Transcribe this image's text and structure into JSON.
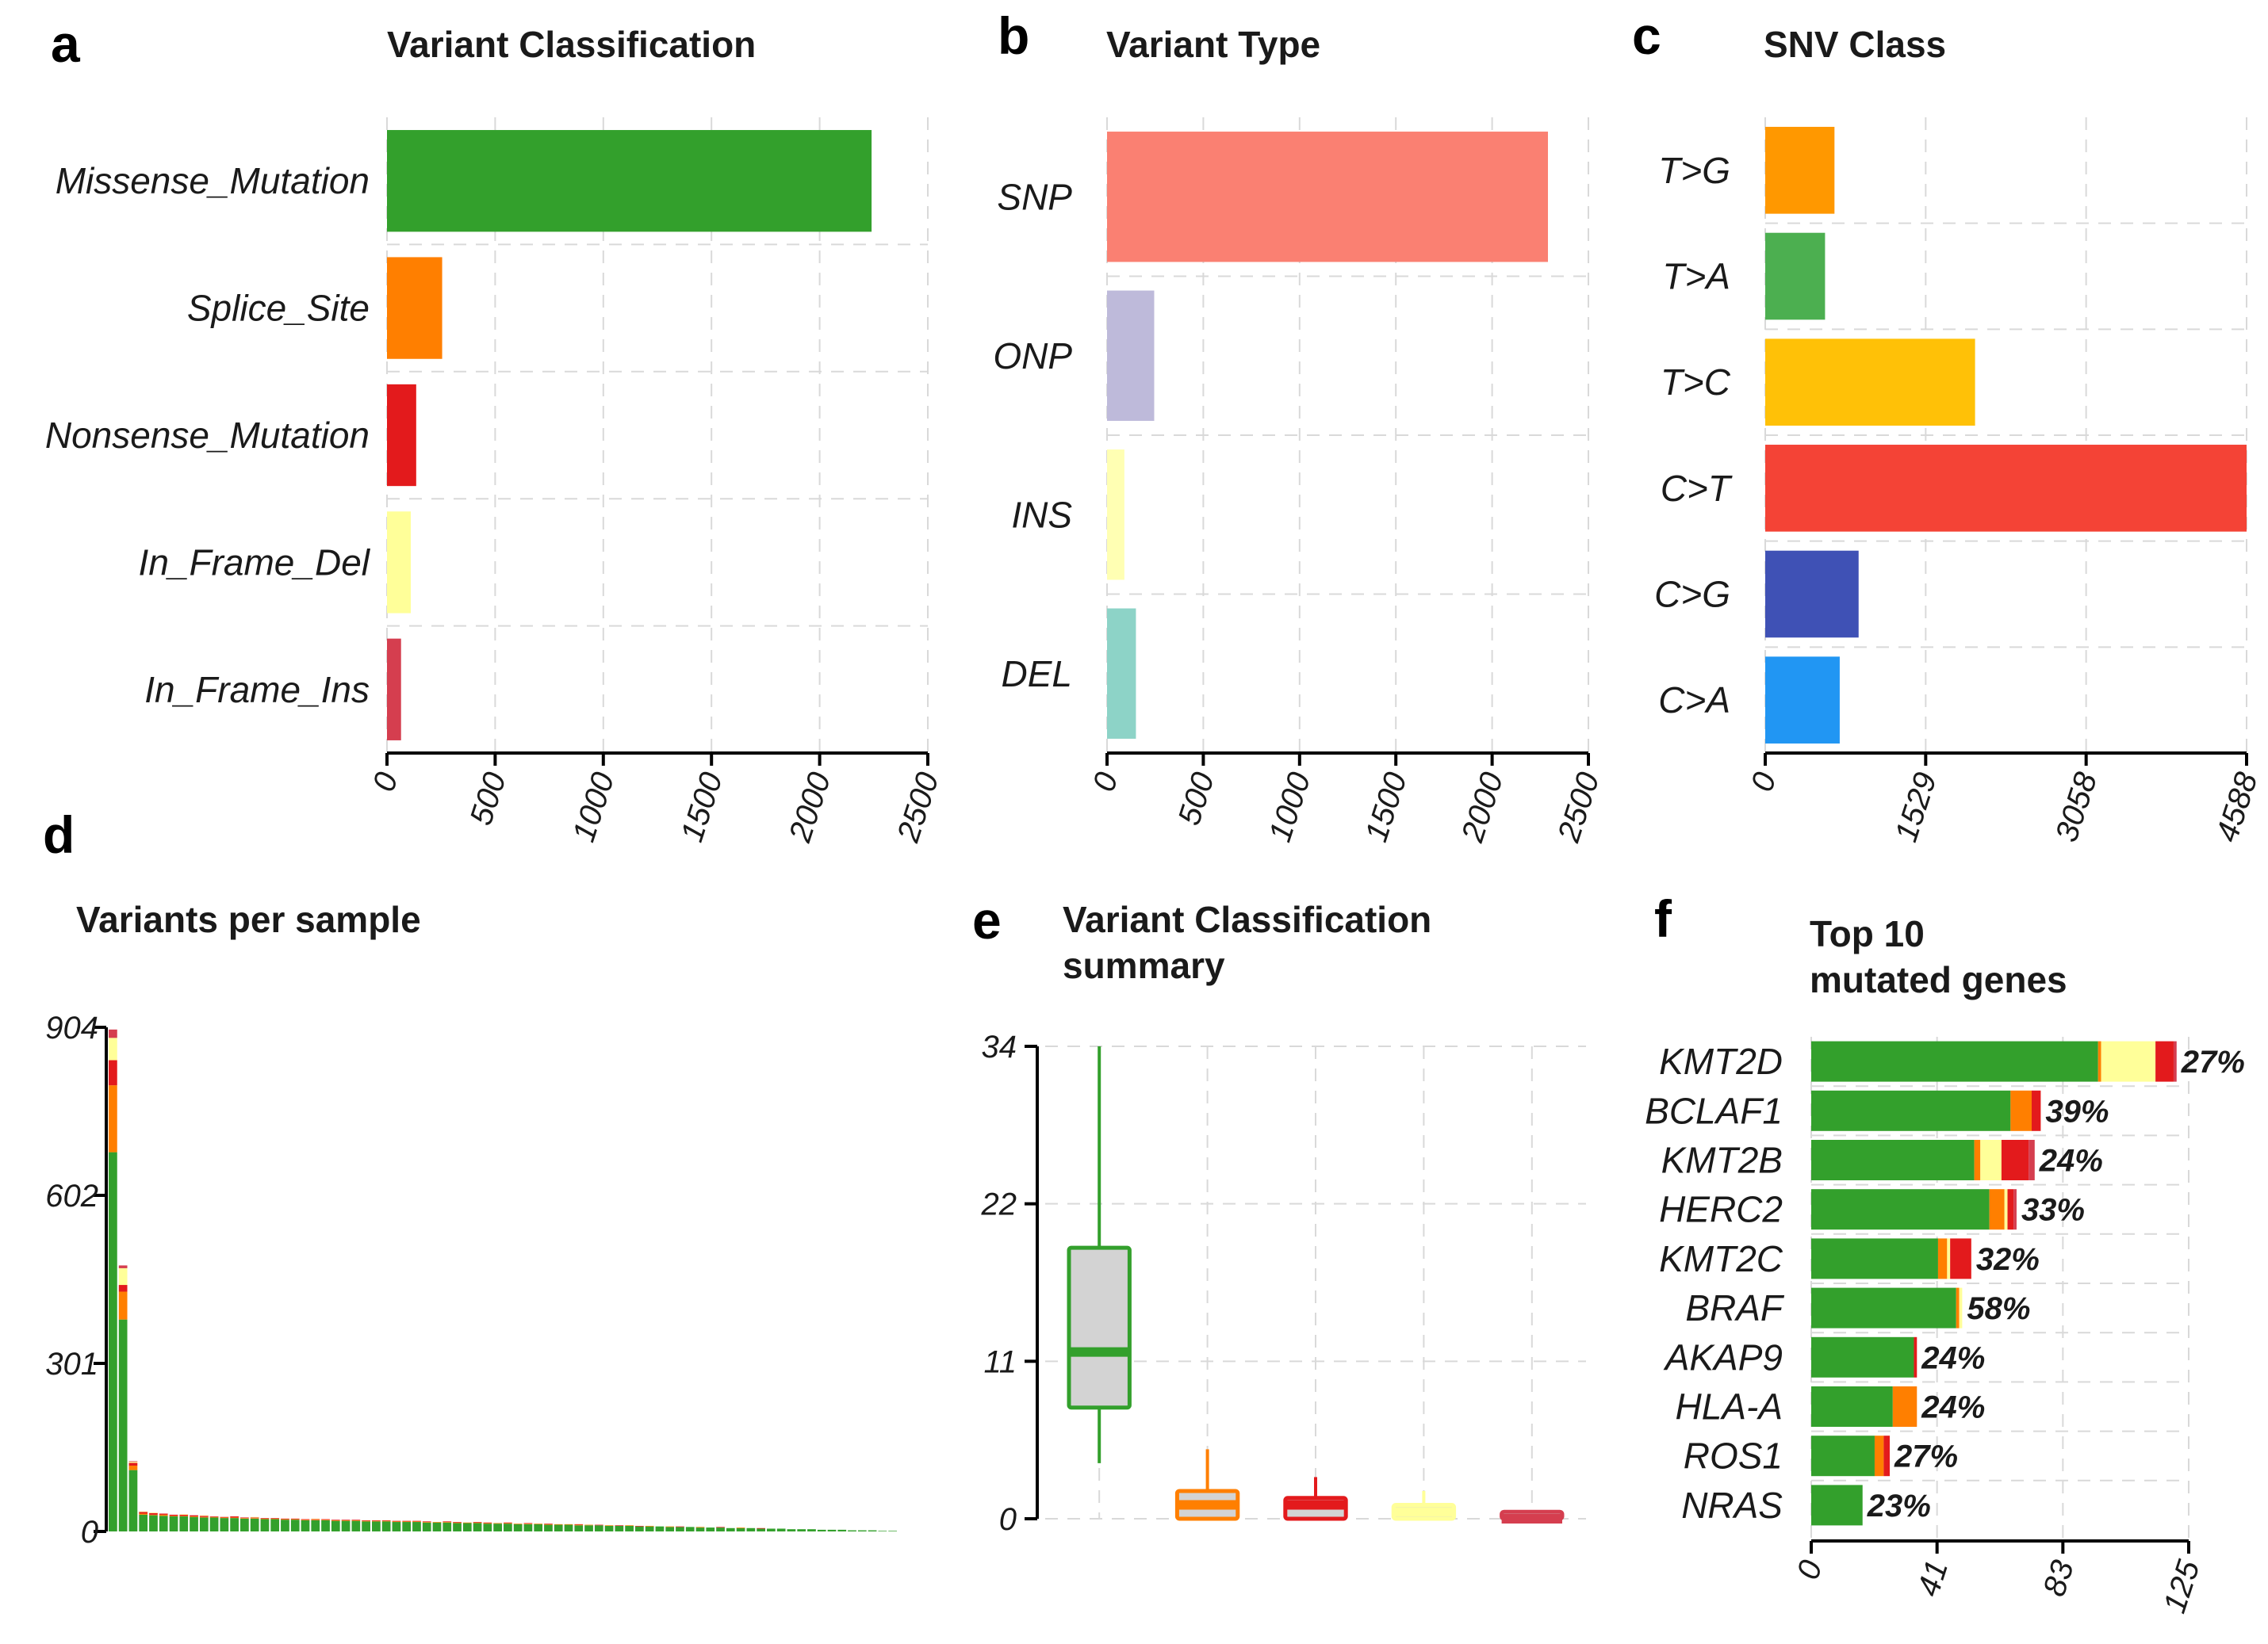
{
  "colors": {
    "Missense_Mutation": "#33A02C",
    "Splice_Site": "#FF7F00",
    "Nonsense_Mutation": "#E31A1C",
    "In_Frame_Del": "#FFFF99",
    "In_Frame_Ins": "#D53E4F",
    "Frame_Shift_Ins": "#FDBF6F"
  },
  "chart_data": [
    {
      "id": "a",
      "panel_label": "a",
      "type": "bar",
      "orientation": "horizontal",
      "title": "Variant Classification",
      "categories": [
        "Missense_Mutation",
        "Splice_Site",
        "Nonsense_Mutation",
        "In_Frame_Del",
        "In_Frame_Ins"
      ],
      "values": [
        2240,
        255,
        135,
        110,
        65
      ],
      "colors": [
        "#33A02C",
        "#FF7F00",
        "#E31A1C",
        "#FFFF99",
        "#D53E4F"
      ],
      "xlim": [
        0,
        2500
      ],
      "xticks": [
        "0",
        "500",
        "1000",
        "1500",
        "2000",
        "2500"
      ]
    },
    {
      "id": "b",
      "panel_label": "b",
      "type": "bar",
      "orientation": "horizontal",
      "title": "Variant Type",
      "categories": [
        "SNP",
        "ONP",
        "INS",
        "DEL"
      ],
      "values": [
        2290,
        245,
        90,
        150
      ],
      "colors": [
        "#FA8072",
        "#BEBADA",
        "#FFFFB3",
        "#8DD3C7"
      ],
      "xlim": [
        0,
        2500
      ],
      "xticks": [
        "0",
        "500",
        "1000",
        "1500",
        "2000",
        "2500"
      ]
    },
    {
      "id": "c",
      "panel_label": "c",
      "type": "bar",
      "orientation": "horizontal",
      "title": "SNV Class",
      "categories": [
        "T>G",
        "T>A",
        "T>C",
        "C>T",
        "C>G",
        "C>A"
      ],
      "values": [
        660,
        570,
        2000,
        4588,
        890,
        710
      ],
      "colors": [
        "#FF9800",
        "#4CAF50",
        "#FFC107",
        "#F44336",
        "#3F51B5",
        "#2196F3"
      ],
      "xlim": [
        0,
        4588
      ],
      "xticks": [
        "0",
        "1529",
        "3058",
        "4588"
      ]
    },
    {
      "id": "d",
      "panel_label": "d",
      "type": "bar",
      "orientation": "vertical",
      "stacked": true,
      "title": "Variants per sample",
      "ylim": [
        0,
        904
      ],
      "yticks": [
        "0",
        "301",
        "602",
        "904"
      ],
      "series_order": [
        "Missense_Mutation",
        "Splice_Site",
        "Nonsense_Mutation",
        "In_Frame_Del",
        "In_Frame_Ins"
      ],
      "samples": [
        [
          680,
          120,
          45,
          40,
          15
        ],
        [
          380,
          50,
          12,
          30,
          5
        ],
        [
          110,
          8,
          5,
          2,
          1
        ],
        [
          30,
          2,
          3,
          1,
          0
        ],
        [
          29,
          1,
          3,
          1,
          0
        ],
        [
          28,
          2,
          2,
          0,
          0
        ],
        [
          27,
          1,
          2,
          0,
          0
        ],
        [
          27,
          1,
          2,
          1,
          0
        ],
        [
          26,
          1,
          2,
          0,
          0
        ],
        [
          25,
          1,
          2,
          1,
          0
        ],
        [
          25,
          1,
          1,
          0,
          0
        ],
        [
          24,
          1,
          1,
          0,
          0
        ],
        [
          24,
          1,
          2,
          0,
          0
        ],
        [
          23,
          1,
          1,
          0,
          0
        ],
        [
          23,
          1,
          1,
          1,
          0
        ],
        [
          22,
          1,
          1,
          0,
          0
        ],
        [
          22,
          1,
          1,
          0,
          0
        ],
        [
          21,
          1,
          1,
          0,
          0
        ],
        [
          21,
          1,
          1,
          0,
          0
        ],
        [
          20,
          1,
          1,
          0,
          0
        ],
        [
          20,
          1,
          1,
          1,
          0
        ],
        [
          20,
          1,
          1,
          0,
          0
        ],
        [
          19,
          1,
          1,
          0,
          0
        ],
        [
          19,
          1,
          1,
          0,
          0
        ],
        [
          19,
          1,
          1,
          0,
          0
        ],
        [
          18,
          1,
          1,
          0,
          0
        ],
        [
          18,
          1,
          1,
          0,
          0
        ],
        [
          18,
          1,
          1,
          0,
          0
        ],
        [
          17,
          1,
          1,
          0,
          0
        ],
        [
          17,
          1,
          1,
          0,
          0
        ],
        [
          17,
          1,
          1,
          0,
          0
        ],
        [
          16,
          1,
          1,
          0,
          0
        ],
        [
          16,
          1,
          0,
          0,
          0
        ],
        [
          16,
          1,
          1,
          0,
          0
        ],
        [
          15,
          1,
          1,
          0,
          0
        ],
        [
          15,
          1,
          0,
          0,
          0
        ],
        [
          15,
          1,
          1,
          0,
          0
        ],
        [
          14,
          1,
          1,
          0,
          0
        ],
        [
          14,
          1,
          0,
          0,
          0
        ],
        [
          14,
          1,
          1,
          0,
          0
        ],
        [
          13,
          1,
          0,
          0,
          0
        ],
        [
          13,
          1,
          1,
          0,
          0
        ],
        [
          13,
          1,
          0,
          0,
          0
        ],
        [
          12,
          1,
          1,
          0,
          0
        ],
        [
          12,
          1,
          0,
          0,
          0
        ],
        [
          12,
          1,
          0,
          0,
          0
        ],
        [
          11,
          1,
          1,
          0,
          0
        ],
        [
          11,
          1,
          0,
          0,
          0
        ],
        [
          11,
          0,
          1,
          0,
          0
        ],
        [
          10,
          1,
          0,
          0,
          0
        ],
        [
          10,
          0,
          1,
          0,
          0
        ],
        [
          10,
          1,
          0,
          0,
          0
        ],
        [
          9,
          0,
          1,
          0,
          0
        ],
        [
          9,
          1,
          0,
          0,
          0
        ],
        [
          9,
          0,
          0,
          0,
          0
        ],
        [
          8,
          1,
          0,
          0,
          0
        ],
        [
          8,
          0,
          1,
          0,
          0
        ],
        [
          8,
          0,
          0,
          0,
          0
        ],
        [
          7,
          1,
          0,
          0,
          0
        ],
        [
          7,
          0,
          0,
          0,
          0
        ],
        [
          7,
          0,
          1,
          0,
          0
        ],
        [
          6,
          0,
          0,
          0,
          0
        ],
        [
          6,
          1,
          0,
          0,
          0
        ],
        [
          6,
          0,
          0,
          0,
          0
        ],
        [
          5,
          0,
          1,
          0,
          0
        ],
        [
          5,
          0,
          0,
          0,
          0
        ],
        [
          5,
          0,
          0,
          0,
          0
        ],
        [
          4,
          0,
          0,
          0,
          0
        ],
        [
          4,
          0,
          0,
          0,
          0
        ],
        [
          4,
          0,
          0,
          0,
          0
        ],
        [
          3,
          0,
          0,
          0,
          0
        ],
        [
          3,
          0,
          0,
          0,
          0
        ],
        [
          3,
          0,
          0,
          0,
          0
        ],
        [
          2,
          0,
          0,
          0,
          0
        ],
        [
          2,
          0,
          0,
          0,
          0
        ],
        [
          2,
          0,
          0,
          0,
          0
        ],
        [
          1,
          0,
          0,
          0,
          0
        ],
        [
          1,
          0,
          0,
          0,
          0
        ]
      ]
    },
    {
      "id": "e",
      "panel_label": "e",
      "type": "box",
      "title_lines": [
        "Variant Classification",
        "summary"
      ],
      "ylim": [
        0,
        34
      ],
      "yticks": [
        "0",
        "11",
        "22",
        "34"
      ],
      "boxes": [
        {
          "category": "Missense_Mutation",
          "color": "#33A02C",
          "fill": "#D3D3D3",
          "min": 4,
          "q1": 8,
          "median": 12,
          "q3": 19.5,
          "max": 34
        },
        {
          "category": "Splice_Site",
          "color": "#FF7F00",
          "fill": "#D3D3D3",
          "min": 0,
          "q1": 0,
          "median": 1,
          "q3": 2,
          "max": 5
        },
        {
          "category": "Nonsense_Mutation",
          "color": "#E31A1C",
          "fill": "#D3D3D3",
          "min": 0,
          "q1": 0,
          "median": 1,
          "q3": 1.5,
          "max": 3
        },
        {
          "category": "In_Frame_Del",
          "color": "#FFFF99",
          "fill": "#D3D3D3",
          "min": 0,
          "q1": 0,
          "median": 0.5,
          "q3": 1,
          "max": 2
        },
        {
          "category": "In_Frame_Ins",
          "color": "#D53E4F",
          "fill": "#D3D3D3",
          "min": 0,
          "q1": 0,
          "median": 0,
          "q3": 0.5,
          "max": 0.5
        }
      ]
    },
    {
      "id": "f",
      "panel_label": "f",
      "type": "bar",
      "orientation": "horizontal",
      "stacked": true,
      "title_lines": [
        "Top 10",
        "mutated genes"
      ],
      "xlim": [
        0,
        125
      ],
      "xticks": [
        "0",
        "41",
        "83",
        "125"
      ],
      "series_order": [
        "Missense_Mutation",
        "Splice_Site",
        "In_Frame_Del",
        "Nonsense_Mutation",
        "In_Frame_Ins"
      ],
      "genes": [
        {
          "name": "KMT2D",
          "pct": "27%",
          "values": [
            95,
            1,
            18,
            6,
            1
          ]
        },
        {
          "name": "BCLAF1",
          "pct": "39%",
          "values": [
            66,
            7,
            0,
            3,
            0
          ]
        },
        {
          "name": "KMT2B",
          "pct": "24%",
          "values": [
            54,
            2,
            7,
            9,
            2
          ]
        },
        {
          "name": "HERC2",
          "pct": "33%",
          "values": [
            59,
            5,
            1,
            2,
            1
          ]
        },
        {
          "name": "KMT2C",
          "pct": "32%",
          "values": [
            42,
            3,
            1,
            7,
            0
          ]
        },
        {
          "name": "BRAF",
          "pct": "58%",
          "values": [
            48,
            1,
            1,
            0,
            0
          ]
        },
        {
          "name": "AKAP9",
          "pct": "24%",
          "values": [
            34,
            0,
            0,
            1,
            0
          ]
        },
        {
          "name": "HLA-A",
          "pct": "24%",
          "values": [
            27,
            8,
            0,
            0,
            0
          ]
        },
        {
          "name": "ROS1",
          "pct": "27%",
          "values": [
            21,
            3,
            0,
            2,
            0
          ]
        },
        {
          "name": "NRAS",
          "pct": "23%",
          "values": [
            17,
            0,
            0,
            0,
            0
          ]
        }
      ]
    }
  ]
}
